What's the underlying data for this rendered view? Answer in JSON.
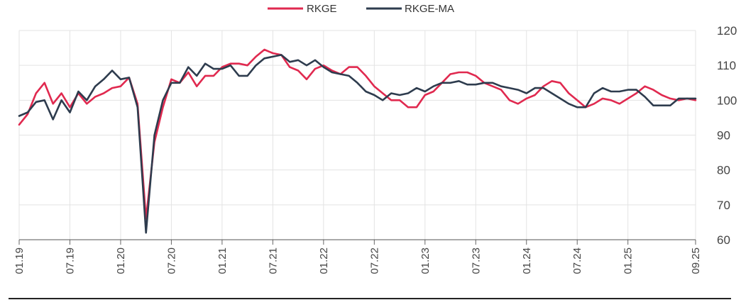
{
  "chart_data": {
    "type": "line",
    "title": "",
    "xlabel": "",
    "ylabel": "",
    "ylim": [
      60,
      120
    ],
    "yticks": [
      60,
      70,
      80,
      90,
      100,
      110,
      120
    ],
    "grid": true,
    "legend_position": "top-center",
    "x_tick_labels": [
      "01.19",
      "07.19",
      "01.20",
      "07.20",
      "01.21",
      "07.21",
      "01.22",
      "07.22",
      "01.23",
      "07.23",
      "01.24",
      "07.24",
      "01.25",
      "09.25"
    ],
    "x_tick_months": [
      0,
      6,
      12,
      18,
      24,
      30,
      36,
      42,
      48,
      54,
      60,
      66,
      72,
      80
    ],
    "series": [
      {
        "name": "RKGE",
        "color": "#e0294f",
        "points": [
          [
            0,
            93
          ],
          [
            1,
            96
          ],
          [
            2,
            102
          ],
          [
            3,
            105
          ],
          [
            4,
            99
          ],
          [
            5,
            102
          ],
          [
            6,
            98
          ],
          [
            7,
            102
          ],
          [
            8,
            99
          ],
          [
            9,
            101
          ],
          [
            10,
            102
          ],
          [
            11,
            103.5
          ],
          [
            12,
            104
          ],
          [
            13,
            106.5
          ],
          [
            14,
            99
          ],
          [
            15,
            66
          ],
          [
            16,
            88
          ],
          [
            17,
            98
          ],
          [
            18,
            106
          ],
          [
            19,
            105
          ],
          [
            20,
            108
          ],
          [
            21,
            104
          ],
          [
            22,
            107
          ],
          [
            23,
            107
          ],
          [
            24,
            109.5
          ],
          [
            25,
            110.5
          ],
          [
            26,
            110.5
          ],
          [
            27,
            110
          ],
          [
            28,
            112.5
          ],
          [
            29,
            114.5
          ],
          [
            30,
            113.5
          ],
          [
            31,
            113
          ],
          [
            32,
            109.5
          ],
          [
            33,
            108.5
          ],
          [
            34,
            106
          ],
          [
            35,
            109
          ],
          [
            36,
            110
          ],
          [
            37,
            108.5
          ],
          [
            38,
            107.5
          ],
          [
            39,
            109.5
          ],
          [
            40,
            109.5
          ],
          [
            41,
            107
          ],
          [
            42,
            104
          ],
          [
            43,
            102
          ],
          [
            44,
            100
          ],
          [
            45,
            100
          ],
          [
            46,
            98
          ],
          [
            47,
            98
          ],
          [
            48,
            101.5
          ],
          [
            49,
            102.5
          ],
          [
            50,
            105
          ],
          [
            51,
            107.5
          ],
          [
            52,
            108
          ],
          [
            53,
            108
          ],
          [
            54,
            107
          ],
          [
            55,
            105
          ],
          [
            56,
            104
          ],
          [
            57,
            103
          ],
          [
            58,
            100
          ],
          [
            59,
            99
          ],
          [
            60,
            100.5
          ],
          [
            61,
            101.5
          ],
          [
            62,
            104
          ],
          [
            63,
            105.5
          ],
          [
            64,
            105
          ],
          [
            65,
            102
          ],
          [
            66,
            100
          ],
          [
            67,
            98
          ],
          [
            68,
            99
          ],
          [
            69,
            100.5
          ],
          [
            70,
            100
          ],
          [
            71,
            99
          ],
          [
            72,
            100.5
          ],
          [
            73,
            102
          ],
          [
            74,
            104
          ],
          [
            75,
            103
          ],
          [
            76,
            101.5
          ],
          [
            77,
            100.5
          ],
          [
            78,
            100
          ],
          [
            79,
            100.5
          ],
          [
            80,
            100
          ]
        ]
      },
      {
        "name": "RKGE-MA",
        "color": "#2e3c4e",
        "points": [
          [
            0,
            95.5
          ],
          [
            1,
            96.5
          ],
          [
            2,
            99.5
          ],
          [
            3,
            100
          ],
          [
            4,
            94.5
          ],
          [
            5,
            100
          ],
          [
            6,
            96.5
          ],
          [
            7,
            102.5
          ],
          [
            8,
            100
          ],
          [
            9,
            104
          ],
          [
            10,
            106
          ],
          [
            11,
            108.5
          ],
          [
            12,
            106
          ],
          [
            13,
            106.5
          ],
          [
            14,
            98
          ],
          [
            15,
            62
          ],
          [
            16,
            90
          ],
          [
            17,
            100
          ],
          [
            18,
            105
          ],
          [
            19,
            105
          ],
          [
            20,
            109.5
          ],
          [
            21,
            107
          ],
          [
            22,
            110.5
          ],
          [
            23,
            109
          ],
          [
            24,
            109
          ],
          [
            25,
            110
          ],
          [
            26,
            107
          ],
          [
            27,
            107
          ],
          [
            28,
            110
          ],
          [
            29,
            112
          ],
          [
            30,
            112.5
          ],
          [
            31,
            113
          ],
          [
            32,
            111
          ],
          [
            33,
            111.5
          ],
          [
            34,
            110
          ],
          [
            35,
            111.5
          ],
          [
            36,
            109.5
          ],
          [
            37,
            108
          ],
          [
            38,
            107.5
          ],
          [
            39,
            107
          ],
          [
            40,
            105
          ],
          [
            41,
            102.5
          ],
          [
            42,
            101.5
          ],
          [
            43,
            100
          ],
          [
            44,
            102
          ],
          [
            45,
            101.5
          ],
          [
            46,
            102
          ],
          [
            47,
            103.5
          ],
          [
            48,
            102.5
          ],
          [
            49,
            104
          ],
          [
            50,
            105
          ],
          [
            51,
            105
          ],
          [
            52,
            105.5
          ],
          [
            53,
            104.5
          ],
          [
            54,
            104.5
          ],
          [
            55,
            105
          ],
          [
            56,
            105
          ],
          [
            57,
            104
          ],
          [
            58,
            103.5
          ],
          [
            59,
            103
          ],
          [
            60,
            102
          ],
          [
            61,
            103.5
          ],
          [
            62,
            103.5
          ],
          [
            63,
            102
          ],
          [
            64,
            100.5
          ],
          [
            65,
            99
          ],
          [
            66,
            98
          ],
          [
            67,
            98
          ],
          [
            68,
            102
          ],
          [
            69,
            103.5
          ],
          [
            70,
            102.5
          ],
          [
            71,
            102.5
          ],
          [
            72,
            103
          ],
          [
            73,
            103
          ],
          [
            74,
            101
          ],
          [
            75,
            98.5
          ],
          [
            76,
            98.5
          ],
          [
            77,
            98.5
          ],
          [
            78,
            100.5
          ],
          [
            79,
            100.5
          ],
          [
            80,
            100.5
          ]
        ]
      }
    ]
  }
}
